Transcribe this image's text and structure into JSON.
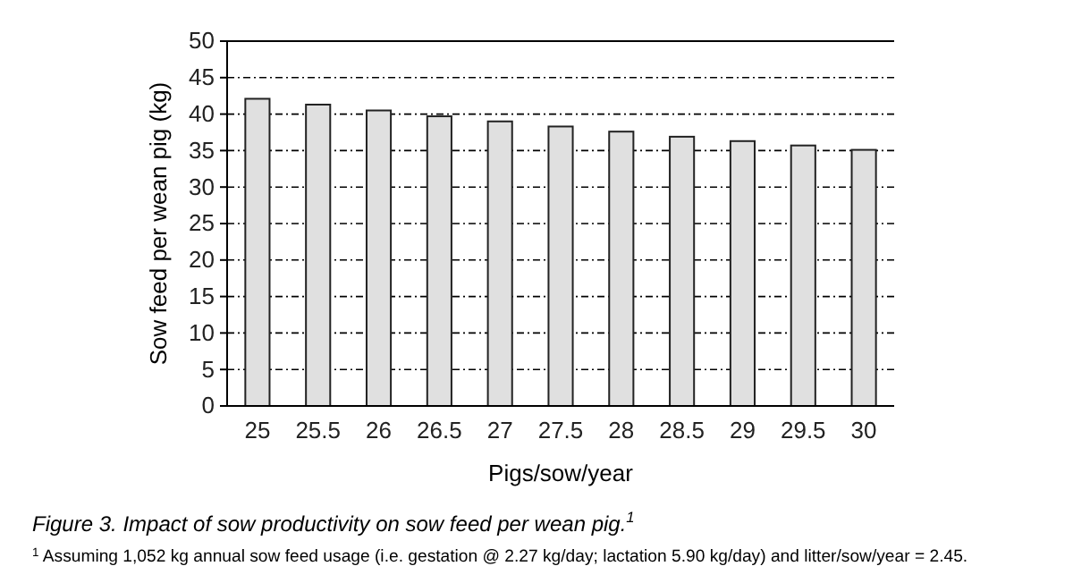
{
  "chart_data": {
    "type": "bar",
    "title": "Figure 3. Impact of sow productivity on sow feed per wean pig.$^{1}$",
    "xlabel": "Pigs/sow/year",
    "ylabel": "Sow feed per wean pig (kg)",
    "categories": [
      "25",
      "25.5",
      "26",
      "26.5",
      "27",
      "27.5",
      "28",
      "28.5",
      "29",
      "29.5",
      "30"
    ],
    "values": [
      42.1,
      41.3,
      40.5,
      39.7,
      39.0,
      38.3,
      37.6,
      36.9,
      36.3,
      35.7,
      35.1
    ],
    "color": "#e0e0e0",
    "ylim": [
      0,
      50
    ],
    "yticks": [
      0,
      5,
      10,
      15,
      20,
      25,
      30,
      35,
      40,
      45,
      50
    ],
    "grid": "y",
    "annotations": [
      "$^{1}$ Assuming 1,052 kg annual sow feed usage (i.e. gestation @ 2.27 kg/day; lactation 5.90 kg/day) and litter/sow/year = 2.45."
    ]
  }
}
